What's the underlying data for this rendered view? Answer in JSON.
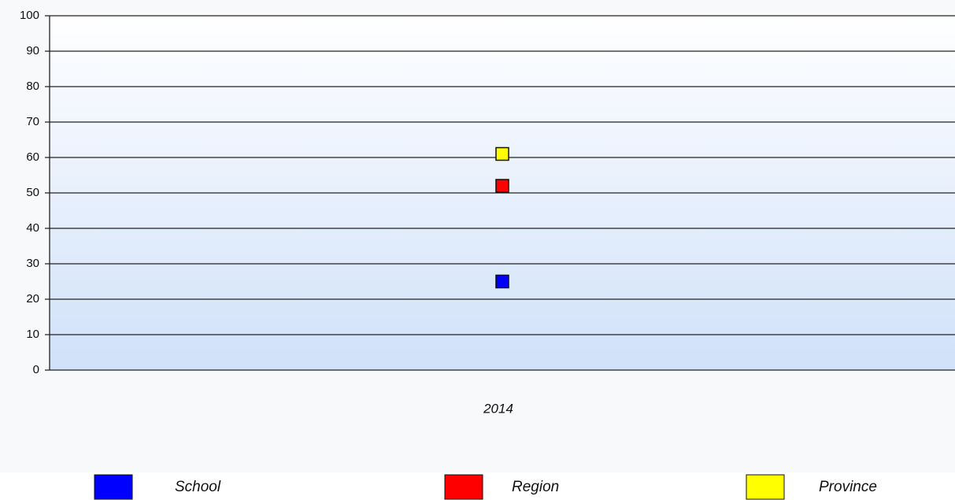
{
  "chart_data": {
    "type": "line",
    "categories": [
      "2014"
    ],
    "series": [
      {
        "name": "School",
        "color": "#0000ff",
        "values": [
          25
        ]
      },
      {
        "name": "Region",
        "color": "#ff0000",
        "values": [
          52
        ]
      },
      {
        "name": "Province",
        "color": "#ffff00",
        "values": [
          61
        ]
      }
    ],
    "ylim": [
      0,
      100
    ],
    "yticks": [
      0,
      10,
      20,
      30,
      40,
      50,
      60,
      70,
      80,
      90,
      100
    ],
    "grid": true,
    "legend": "bottom"
  }
}
